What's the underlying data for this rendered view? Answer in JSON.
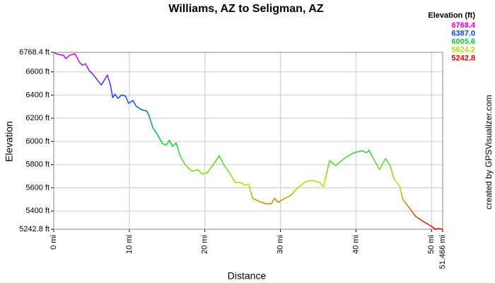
{
  "chart_data": {
    "type": "line",
    "title": "Williams, AZ to Seligman, AZ",
    "x_label": "Distance",
    "y_label": "Elevation",
    "annotation": "created by GPSVisualizer.com",
    "color_scale": {
      "title": "Elevation (ft)",
      "stops": [
        {
          "value": 6768.4,
          "label": "6768.4",
          "color": "#dd00dd"
        },
        {
          "value": 6387,
          "label": "6387.0",
          "color": "#1040ff"
        },
        {
          "value": 6005.6,
          "label": "6005.6",
          "color": "#00cc44"
        },
        {
          "value": 5624.2,
          "label": "5624.2",
          "color": "#bbdd00"
        },
        {
          "value": 5242.8,
          "label": "5242.8",
          "color": "#dd0000"
        }
      ]
    },
    "grid": true,
    "xlim": [
      0,
      51.466
    ],
    "ylim": [
      5242.8,
      6768.4
    ],
    "xticks": [
      {
        "value": 0,
        "label": "0 mi"
      },
      {
        "value": 10,
        "label": "10 mi"
      },
      {
        "value": 20,
        "label": "20 mi"
      },
      {
        "value": 30,
        "label": "30 mi"
      },
      {
        "value": 40,
        "label": "40 mi"
      },
      {
        "value": 50,
        "label": "50 mi"
      },
      {
        "value": 51.466,
        "label": "51.466 mi"
      }
    ],
    "yticks": [
      {
        "value": 5242.8,
        "label": "5242.8 ft"
      },
      {
        "value": 5400,
        "label": "5400 ft"
      },
      {
        "value": 5600,
        "label": "5600 ft"
      },
      {
        "value": 5800,
        "label": "5800 ft"
      },
      {
        "value": 6000,
        "label": "6000 ft"
      },
      {
        "value": 6200,
        "label": "6200 ft"
      },
      {
        "value": 6400,
        "label": "6400 ft"
      },
      {
        "value": 6600,
        "label": "6600 ft"
      },
      {
        "value": 6768.4,
        "label": "6768.4 ft"
      }
    ],
    "x": [
      0,
      0.6,
      1.3,
      1.6,
      2.1,
      2.8,
      3.4,
      3.8,
      4.2,
      4.7,
      5.2,
      5.7,
      6.3,
      7.1,
      7.5,
      7.8,
      8.1,
      8.5,
      9.0,
      9.5,
      9.9,
      10.5,
      10.9,
      11.6,
      12.3,
      12.6,
      13.1,
      13.7,
      14.4,
      14.9,
      15.3,
      15.7,
      16.2,
      16.7,
      17.4,
      18.3,
      19.1,
      19.6,
      20.3,
      21.1,
      21.9,
      22.5,
      23.3,
      24.0,
      24.7,
      25.3,
      25.8,
      26.3,
      27.0,
      28.0,
      28.8,
      29.2,
      29.7,
      30.3,
      31.4,
      32.2,
      33.3,
      34.2,
      35.2,
      35.7,
      36.5,
      37.3,
      38.7,
      39.7,
      40.8,
      41.4,
      41.7,
      42.5,
      43.1,
      43.9,
      44.5,
      45.0,
      45.8,
      46.2,
      47.2,
      47.9,
      48.9,
      50.0,
      50.5,
      50.9,
      51.466
    ],
    "series": [
      {
        "name": "Elevation",
        "values": [
          6768,
          6750,
          6744,
          6713,
          6744,
          6756,
          6683,
          6658,
          6670,
          6610,
          6579,
          6536,
          6487,
          6573,
          6487,
          6378,
          6408,
          6372,
          6402,
          6390,
          6329,
          6353,
          6304,
          6274,
          6262,
          6225,
          6121,
          6060,
          5981,
          5969,
          6011,
          5957,
          5987,
          5877,
          5798,
          5743,
          5756,
          5719,
          5731,
          5798,
          5877,
          5798,
          5725,
          5646,
          5646,
          5621,
          5633,
          5511,
          5487,
          5463,
          5463,
          5511,
          5475,
          5499,
          5536,
          5597,
          5652,
          5664,
          5646,
          5609,
          5835,
          5792,
          5865,
          5902,
          5920,
          5902,
          5926,
          5829,
          5756,
          5853,
          5792,
          5682,
          5609,
          5499,
          5414,
          5353,
          5310,
          5267,
          5243,
          5249,
          5243
        ]
      }
    ]
  }
}
